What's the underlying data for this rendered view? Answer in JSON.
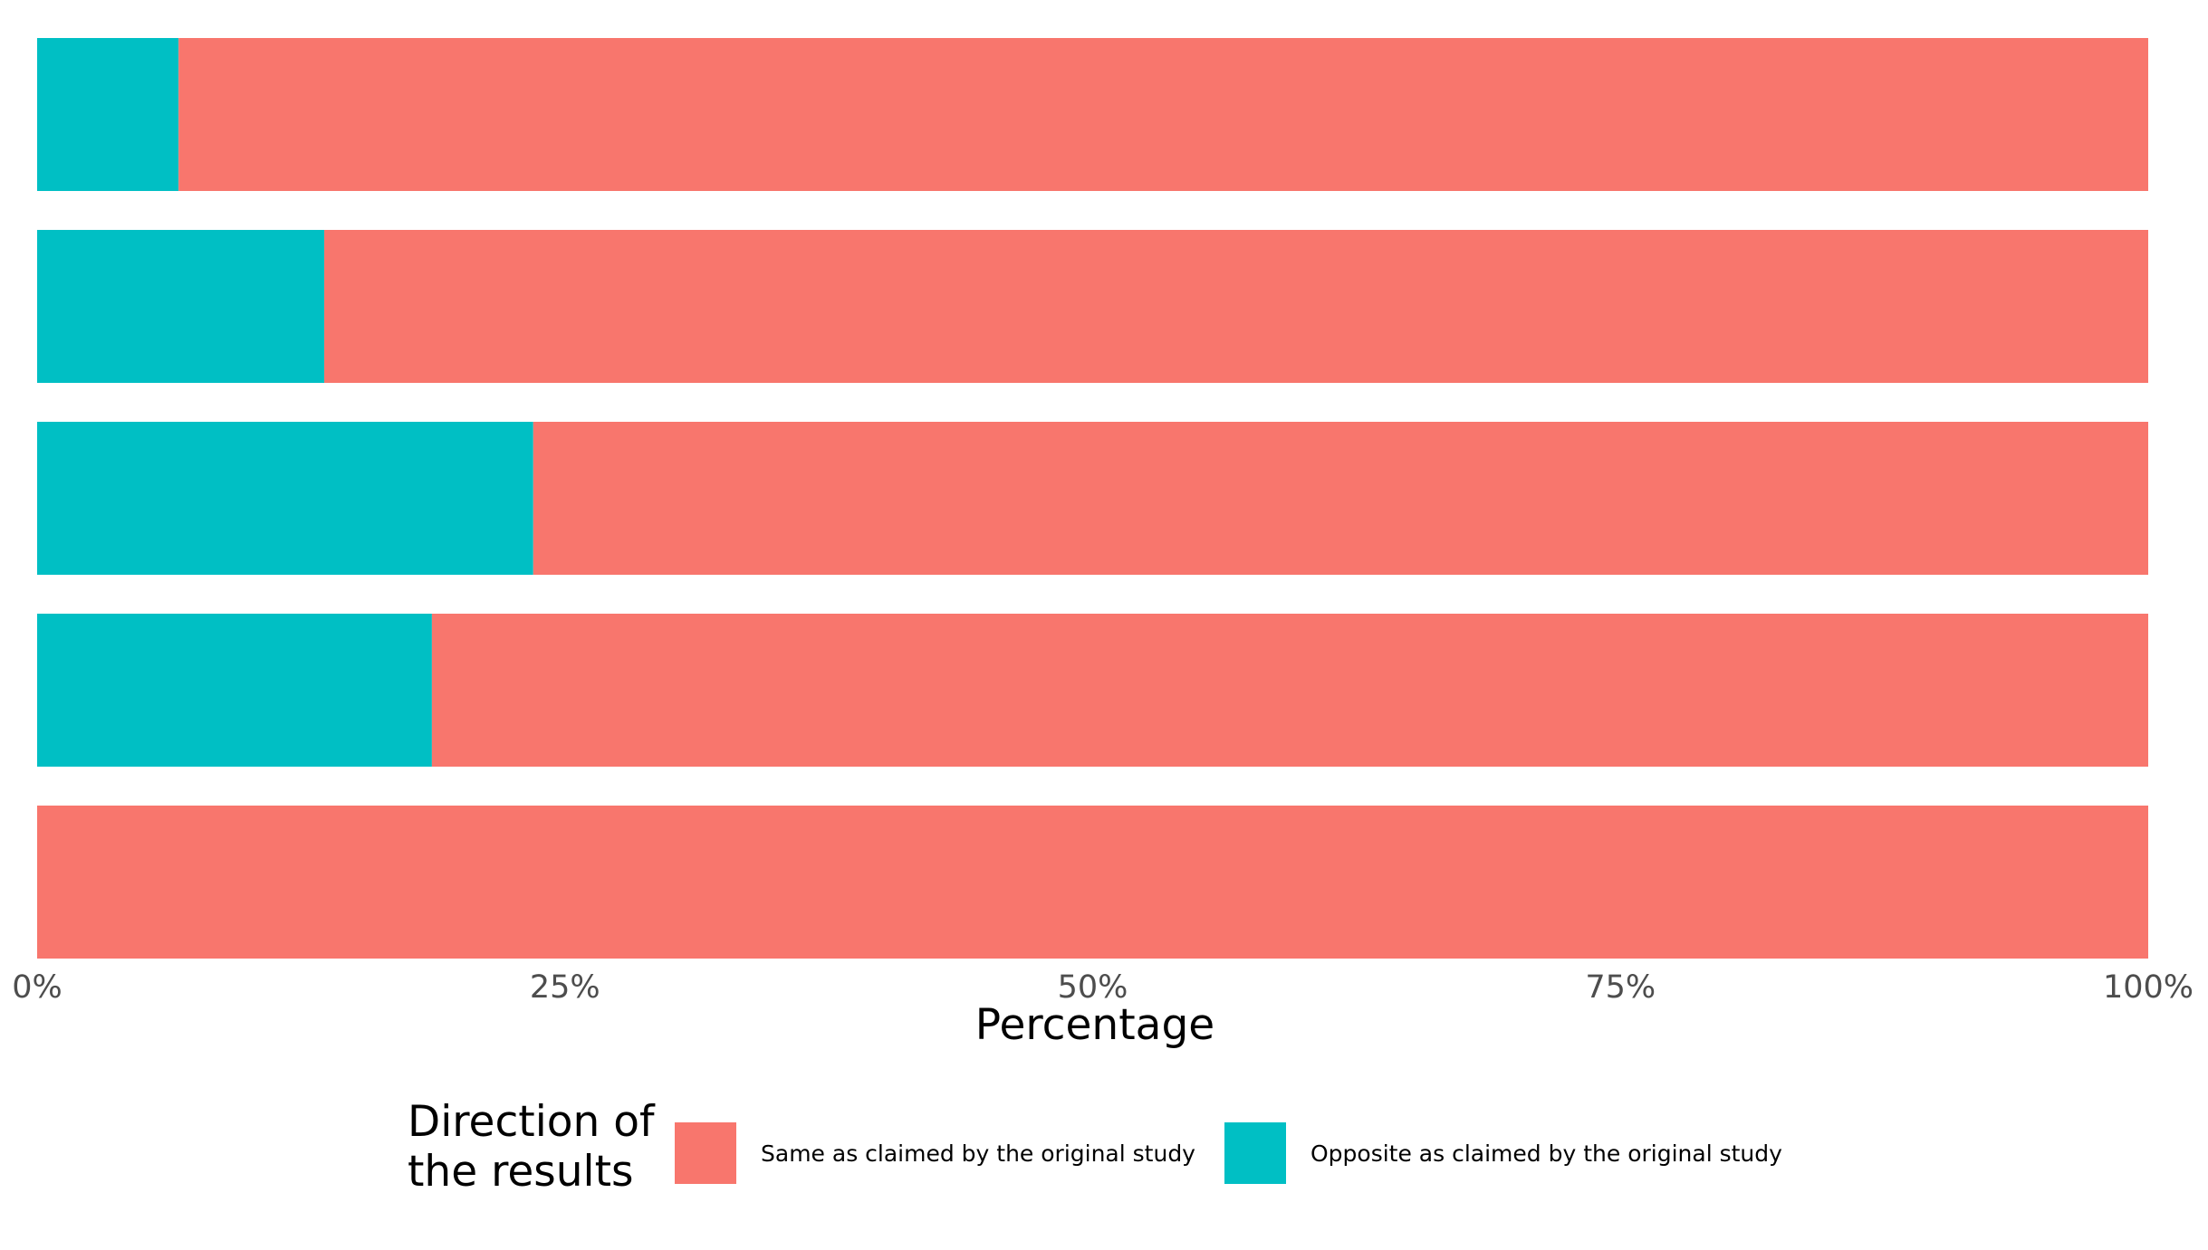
{
  "chart_data": {
    "type": "bar",
    "orientation": "horizontal",
    "stacked": true,
    "normalized": true,
    "categories": [
      "",
      "",
      "",
      "",
      ""
    ],
    "series": [
      {
        "name": "Opposite as claimed by the original study",
        "color": "#00BFC4",
        "values": [
          6.7,
          13.6,
          23.5,
          18.7,
          0
        ]
      },
      {
        "name": "Same as claimed by the original study",
        "color": "#F8766D",
        "values": [
          93.3,
          86.4,
          76.5,
          81.3,
          100
        ]
      }
    ],
    "xlim": [
      0,
      100
    ],
    "x_ticks": [
      0,
      25,
      50,
      75,
      100
    ],
    "x_tick_labels": [
      "0%",
      "25%",
      "50%",
      "75%",
      "100%"
    ],
    "xlabel": "Percentage",
    "ylabel": "",
    "grid": false,
    "legend": {
      "title_lines": [
        "Direction of",
        "the results"
      ],
      "position": "bottom",
      "entries": [
        {
          "label": "Same as claimed by the original study",
          "color": "#F8766D"
        },
        {
          "label": "Opposite as claimed by the original study",
          "color": "#00BFC4"
        }
      ]
    }
  }
}
